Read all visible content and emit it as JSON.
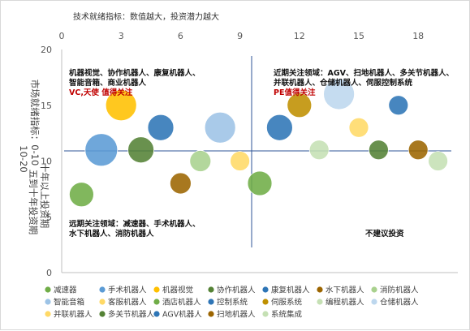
{
  "chart_data": {
    "type": "bubble",
    "title": "技术就绪指标：数值越大，投资潜力越大",
    "ylabel_lines": [
      "市场就绪指标：0-10",
      "十年以上投资期",
      "10-20",
      "五到十年投资期"
    ],
    "xlim": [
      0,
      20
    ],
    "ylim": [
      0,
      20
    ],
    "xticks": [
      0,
      3,
      6,
      9,
      12,
      15,
      18
    ],
    "yticks": [
      0,
      5,
      10,
      15,
      20
    ],
    "divider": {
      "x": 10,
      "y": 11
    },
    "annotations": {
      "top_left": {
        "lines": [
          "机器视觉、协作机器人、康复机器人、",
          "智能音箱、商业机器人"
        ],
        "highlight": "VC,天使 值得关注"
      },
      "top_right": {
        "lines": [
          "近期关注领域：AGV、扫地机器人、多关节机器人、",
          "并联机器人、仓储机器人、伺服控制系统"
        ],
        "highlight": "PE值得关注"
      },
      "bottom_left": {
        "lines": [
          "远期关注领域：减速器、手术机器人、",
          "水下机器人、消防机器人"
        ]
      },
      "bottom_right": {
        "lines": [
          "不建议投资"
        ]
      }
    },
    "series": [
      {
        "name": "减速器",
        "color": "#70ad47",
        "x": 1,
        "y": 7,
        "size": 15
      },
      {
        "name": "手术机器人",
        "color": "#5b9bd5",
        "x": 2,
        "y": 11,
        "size": 20
      },
      {
        "name": "机器视觉",
        "color": "#ffc000",
        "x": 3,
        "y": 15,
        "size": 19
      },
      {
        "name": "协作机器人",
        "color": "#548235",
        "x": 4,
        "y": 11,
        "size": 16
      },
      {
        "name": "康复机器人",
        "color": "#2e75b6",
        "x": 5,
        "y": 13,
        "size": 16
      },
      {
        "name": "水下机器人",
        "color": "#9c6500",
        "x": 6,
        "y": 8,
        "size": 13
      },
      {
        "name": "消防机器人",
        "color": "#a9d18e",
        "x": 7,
        "y": 10,
        "size": 13
      },
      {
        "name": "智能音箱",
        "color": "#9dc3e6",
        "x": 8,
        "y": 13,
        "size": 19
      },
      {
        "name": "客服机器人",
        "color": "#ffd966",
        "x": 9,
        "y": 10,
        "size": 12
      },
      {
        "name": "酒店机器人",
        "color": "#70ad47",
        "x": 10,
        "y": 8,
        "size": 15
      },
      {
        "name": "控制系统",
        "color": "#2e75b6",
        "x": 11,
        "y": 13,
        "size": 16
      },
      {
        "name": "伺服系统",
        "color": "#bf9000",
        "x": 12,
        "y": 15,
        "size": 15
      },
      {
        "name": "编程机器人",
        "color": "#c5e0b4",
        "x": 13,
        "y": 11,
        "size": 12
      },
      {
        "name": "仓储机器人",
        "color": "#bdd7ee",
        "x": 14,
        "y": 16,
        "size": 19
      },
      {
        "name": "并联机器人",
        "color": "#ffd966",
        "x": 15,
        "y": 13,
        "size": 12
      },
      {
        "name": "多关节机器人",
        "color": "#548235",
        "x": 16,
        "y": 11,
        "size": 12
      },
      {
        "name": "AGV机器人",
        "color": "#2e75b6",
        "x": 17,
        "y": 15,
        "size": 12
      },
      {
        "name": "扫地机器人",
        "color": "#9c6500",
        "x": 18,
        "y": 11,
        "size": 12
      },
      {
        "name": "系统集成",
        "color": "#c5e0b4",
        "x": 19,
        "y": 10,
        "size": 12
      }
    ]
  }
}
